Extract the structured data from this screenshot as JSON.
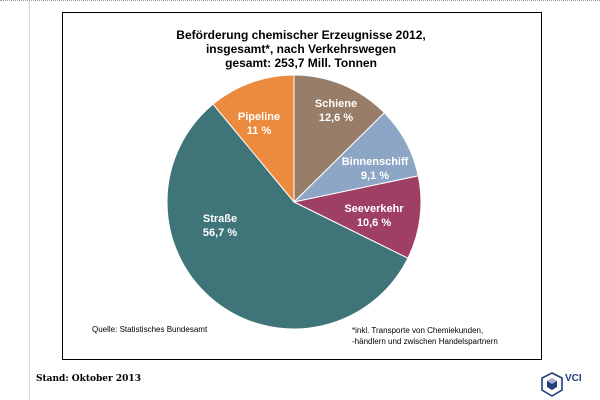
{
  "title_lines": [
    "Beförderung chemischer Erzeugnisse 2012,",
    "insgesamt*, nach Verkehrswegen",
    "gesamt: 253,7 Mill.  Tonnen"
  ],
  "chart_data": {
    "type": "pie",
    "title": "Beförderung chemischer Erzeugnisse 2012, insgesamt*, nach Verkehrswegen – gesamt: 253,7 Mill.  Tonnen",
    "slices": [
      {
        "name": "Schiene",
        "label": "12,6 %",
        "value": 12.6,
        "color": "#987d68"
      },
      {
        "name": "Binnenschiff",
        "label": "9,1 %",
        "value": 9.1,
        "color": "#8ea6c5"
      },
      {
        "name": "Seeverkehr",
        "label": "10,6 %",
        "value": 10.6,
        "color": "#9e3f63"
      },
      {
        "name": "Straße",
        "label": "56,7 %",
        "value": 56.7,
        "color": "#3f7478"
      },
      {
        "name": "Pipeline",
        "label": "11 %",
        "value": 11.0,
        "color": "#ec8a3e"
      }
    ],
    "start_angle_deg": 0,
    "direction": "clockwise",
    "label_color": "#ffffff"
  },
  "source": "Quelle: Statistisches Bundesamt",
  "footnote_lines": [
    "*inkl. Transporte von Chemiekunden,",
    "-händlern und zwischen Handelspartnern"
  ],
  "stand": "Stand: Oktober 2013",
  "logo": {
    "text": "VCI",
    "icon": "vci-hexagon-logo",
    "color": "#1f3e7a"
  }
}
